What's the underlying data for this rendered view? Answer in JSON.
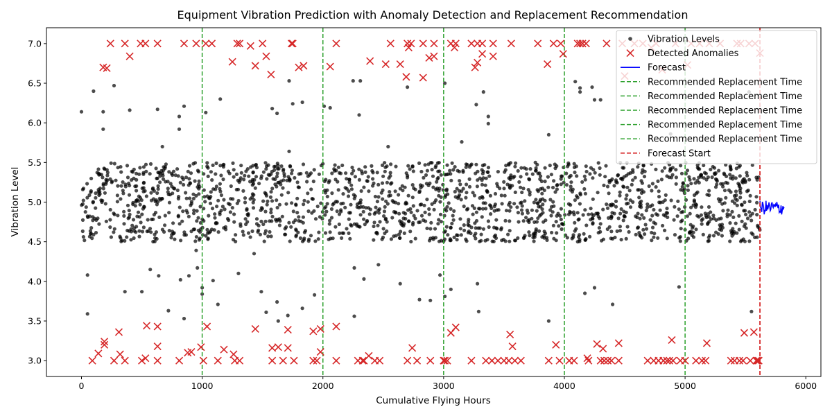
{
  "chart_data": {
    "type": "scatter",
    "title": "Equipment Vibration Prediction with Anomaly Detection and Replacement Recommendation",
    "xlabel": "Cumulative Flying Hours",
    "ylabel": "Vibration Level",
    "xlim": [
      -290,
      6125
    ],
    "ylim": [
      2.8,
      7.2
    ],
    "xticks": [
      0,
      1000,
      2000,
      3000,
      4000,
      5000,
      6000
    ],
    "yticks": [
      3.0,
      3.5,
      4.0,
      4.5,
      5.0,
      5.5,
      6.0,
      6.5,
      7.0
    ],
    "grid": false,
    "legend_position": "top-right",
    "colors": {
      "vibration": "#000000",
      "anomaly": "#d62728",
      "forecast": "#0000ff",
      "replacement": "#2ca02c",
      "forecast_start": "#d62728"
    },
    "vibration_series": {
      "name": "Vibration Levels",
      "n_points": 1800,
      "x_range": [
        0,
        5620
      ],
      "normal_band": [
        4.5,
        5.5
      ],
      "note_outliers": [
        [
          0,
          6.14
        ],
        [
          50,
          4.08
        ],
        [
          50,
          3.59
        ],
        [
          100,
          6.4
        ],
        [
          180,
          6.14
        ],
        [
          180,
          5.92
        ],
        [
          270,
          6.47
        ],
        [
          360,
          3.87
        ],
        [
          400,
          6.16
        ],
        [
          500,
          3.87
        ],
        [
          570,
          4.15
        ],
        [
          630,
          6.17
        ],
        [
          640,
          4.07
        ],
        [
          670,
          5.7
        ],
        [
          720,
          3.63
        ],
        [
          810,
          6.08
        ],
        [
          810,
          5.92
        ],
        [
          820,
          4.02
        ],
        [
          850,
          3.53
        ],
        [
          850,
          6.21
        ],
        [
          890,
          4.07
        ],
        [
          950,
          4.39
        ],
        [
          960,
          4.17
        ],
        [
          1000,
          3.92
        ],
        [
          1000,
          3.84
        ],
        [
          1030,
          6.13
        ],
        [
          1090,
          4.01
        ],
        [
          1130,
          3.71
        ],
        [
          1150,
          6.3
        ],
        [
          1300,
          4.1
        ],
        [
          1430,
          4.35
        ],
        [
          1490,
          3.87
        ],
        [
          1530,
          3.61
        ],
        [
          1580,
          6.18
        ],
        [
          1620,
          6.12
        ],
        [
          1620,
          3.74
        ],
        [
          1630,
          3.5
        ],
        [
          1710,
          3.57
        ],
        [
          1720,
          5.64
        ],
        [
          1720,
          6.53
        ],
        [
          1750,
          6.24
        ],
        [
          1830,
          6.26
        ],
        [
          1830,
          3.66
        ],
        [
          1930,
          3.83
        ],
        [
          2010,
          6.21
        ],
        [
          2060,
          6.19
        ],
        [
          2250,
          6.53
        ],
        [
          2260,
          3.56
        ],
        [
          2260,
          4.17
        ],
        [
          2300,
          6.1
        ],
        [
          2310,
          6.53
        ],
        [
          2340,
          4.03
        ],
        [
          2460,
          4.21
        ],
        [
          2540,
          5.7
        ],
        [
          2640,
          3.97
        ],
        [
          2700,
          6.45
        ],
        [
          2800,
          3.77
        ],
        [
          2890,
          3.76
        ],
        [
          2970,
          4.08
        ],
        [
          3010,
          6.5
        ],
        [
          3010,
          3.81
        ],
        [
          3060,
          3.9
        ],
        [
          3150,
          5.76
        ],
        [
          3270,
          6.23
        ],
        [
          3280,
          3.97
        ],
        [
          3290,
          3.62
        ],
        [
          3330,
          6.39
        ],
        [
          3370,
          6.08
        ],
        [
          3370,
          5.99
        ],
        [
          3870,
          5.85
        ],
        [
          3870,
          3.5
        ],
        [
          4090,
          6.52
        ],
        [
          4130,
          6.44
        ],
        [
          4130,
          6.39
        ],
        [
          4170,
          3.85
        ],
        [
          4230,
          6.45
        ],
        [
          4250,
          6.29
        ],
        [
          4250,
          3.92
        ],
        [
          4300,
          6.29
        ],
        [
          4400,
          3.71
        ],
        [
          4880,
          5.86
        ],
        [
          4950,
          3.93
        ],
        [
          5530,
          6.39
        ],
        [
          5550,
          3.62
        ]
      ]
    },
    "anomalies": {
      "name": "Detected Anomalies",
      "points": [
        [
          90,
          3.0
        ],
        [
          140,
          3.09
        ],
        [
          180,
          6.7
        ],
        [
          190,
          3.24
        ],
        [
          190,
          3.2
        ],
        [
          210,
          6.69
        ],
        [
          240,
          7.0
        ],
        [
          270,
          3.0
        ],
        [
          310,
          3.36
        ],
        [
          320,
          3.08
        ],
        [
          360,
          7.0
        ],
        [
          360,
          3.0
        ],
        [
          400,
          6.84
        ],
        [
          490,
          7.0
        ],
        [
          500,
          3.0
        ],
        [
          530,
          7.0
        ],
        [
          530,
          3.03
        ],
        [
          540,
          3.44
        ],
        [
          630,
          7.0
        ],
        [
          630,
          3.43
        ],
        [
          630,
          3.18
        ],
        [
          630,
          3.0
        ],
        [
          810,
          3.0
        ],
        [
          850,
          7.0
        ],
        [
          880,
          3.1
        ],
        [
          910,
          3.11
        ],
        [
          950,
          7.0
        ],
        [
          990,
          3.17
        ],
        [
          1010,
          3.0
        ],
        [
          1030,
          7.0
        ],
        [
          1040,
          3.43
        ],
        [
          1080,
          7.0
        ],
        [
          1130,
          3.0
        ],
        [
          1180,
          3.14
        ],
        [
          1250,
          6.77
        ],
        [
          1260,
          3.08
        ],
        [
          1270,
          3.0
        ],
        [
          1290,
          7.0
        ],
        [
          1310,
          7.0
        ],
        [
          1310,
          3.0
        ],
        [
          1400,
          6.97
        ],
        [
          1440,
          6.72
        ],
        [
          1440,
          3.4
        ],
        [
          1500,
          7.0
        ],
        [
          1530,
          6.84
        ],
        [
          1570,
          6.61
        ],
        [
          1580,
          3.16
        ],
        [
          1580,
          3.0
        ],
        [
          1630,
          3.17
        ],
        [
          1670,
          3.0
        ],
        [
          1710,
          3.39
        ],
        [
          1710,
          3.16
        ],
        [
          1740,
          7.0
        ],
        [
          1750,
          7.0
        ],
        [
          1760,
          3.0
        ],
        [
          1800,
          6.7
        ],
        [
          1840,
          6.72
        ],
        [
          1920,
          3.37
        ],
        [
          1920,
          3.0
        ],
        [
          1950,
          3.0
        ],
        [
          1980,
          3.4
        ],
        [
          1980,
          3.11
        ],
        [
          2060,
          6.71
        ],
        [
          2110,
          7.0
        ],
        [
          2110,
          3.43
        ],
        [
          2110,
          3.0
        ],
        [
          2290,
          3.0
        ],
        [
          2330,
          3.0
        ],
        [
          2340,
          3.0
        ],
        [
          2380,
          3.06
        ],
        [
          2390,
          6.78
        ],
        [
          2430,
          3.0
        ],
        [
          2470,
          3.0
        ],
        [
          2520,
          6.74
        ],
        [
          2560,
          7.0
        ],
        [
          2640,
          6.74
        ],
        [
          2690,
          6.58
        ],
        [
          2700,
          7.0
        ],
        [
          2700,
          3.0
        ],
        [
          2710,
          6.95
        ],
        [
          2730,
          7.0
        ],
        [
          2740,
          3.16
        ],
        [
          2780,
          3.0
        ],
        [
          2830,
          7.0
        ],
        [
          2830,
          6.57
        ],
        [
          2880,
          6.82
        ],
        [
          2890,
          3.0
        ],
        [
          2920,
          7.0
        ],
        [
          2920,
          6.84
        ],
        [
          3000,
          3.0
        ],
        [
          3010,
          3.0
        ],
        [
          3030,
          3.0
        ],
        [
          3060,
          7.0
        ],
        [
          3060,
          3.35
        ],
        [
          3090,
          6.95
        ],
        [
          3100,
          3.42
        ],
        [
          3100,
          7.0
        ],
        [
          3230,
          7.0
        ],
        [
          3230,
          3.0
        ],
        [
          3260,
          6.7
        ],
        [
          3280,
          6.76
        ],
        [
          3280,
          7.0
        ],
        [
          3320,
          7.0
        ],
        [
          3320,
          6.87
        ],
        [
          3350,
          3.0
        ],
        [
          3400,
          3.0
        ],
        [
          3410,
          7.0
        ],
        [
          3410,
          6.84
        ],
        [
          3450,
          3.0
        ],
        [
          3500,
          3.0
        ],
        [
          3540,
          3.0
        ],
        [
          3550,
          3.33
        ],
        [
          3560,
          7.0
        ],
        [
          3570,
          3.18
        ],
        [
          3590,
          3.0
        ],
        [
          3640,
          3.0
        ],
        [
          3780,
          7.0
        ],
        [
          3860,
          6.74
        ],
        [
          3870,
          3.0
        ],
        [
          3910,
          7.0
        ],
        [
          3930,
          3.2
        ],
        [
          3960,
          3.0
        ],
        [
          3970,
          7.0
        ],
        [
          3990,
          6.87
        ],
        [
          4040,
          3.0
        ],
        [
          4080,
          3.0
        ],
        [
          4110,
          7.0
        ],
        [
          4130,
          7.0
        ],
        [
          4150,
          7.0
        ],
        [
          4180,
          7.0
        ],
        [
          4190,
          3.03
        ],
        [
          4200,
          3.0
        ],
        [
          4270,
          3.21
        ],
        [
          4300,
          3.0
        ],
        [
          4320,
          3.15
        ],
        [
          4330,
          3.0
        ],
        [
          4350,
          7.0
        ],
        [
          4360,
          3.0
        ],
        [
          4390,
          3.0
        ],
        [
          4450,
          3.22
        ],
        [
          4450,
          3.0
        ],
        [
          4480,
          7.0
        ],
        [
          4500,
          6.59
        ],
        [
          4580,
          7.0
        ],
        [
          4650,
          7.0
        ],
        [
          4690,
          3.0
        ],
        [
          4720,
          6.95
        ],
        [
          4740,
          3.0
        ],
        [
          4760,
          7.0
        ],
        [
          4780,
          3.0
        ],
        [
          4810,
          6.67
        ],
        [
          4820,
          3.0
        ],
        [
          4850,
          3.0
        ],
        [
          4870,
          3.0
        ],
        [
          4890,
          3.26
        ],
        [
          4900,
          3.0
        ],
        [
          4920,
          7.0
        ],
        [
          4960,
          3.0
        ],
        [
          5000,
          3.0
        ],
        [
          5020,
          6.73
        ],
        [
          5050,
          7.0
        ],
        [
          5090,
          3.0
        ],
        [
          5120,
          7.0
        ],
        [
          5140,
          3.0
        ],
        [
          5170,
          3.0
        ],
        [
          5180,
          3.22
        ],
        [
          5200,
          7.0
        ],
        [
          5290,
          7.0
        ],
        [
          5380,
          3.0
        ],
        [
          5410,
          3.0
        ],
        [
          5430,
          7.0
        ],
        [
          5450,
          3.0
        ],
        [
          5460,
          7.0
        ],
        [
          5480,
          3.0
        ],
        [
          5490,
          3.35
        ],
        [
          5530,
          7.0
        ],
        [
          5540,
          3.0
        ],
        [
          5570,
          3.36
        ],
        [
          5580,
          7.0
        ],
        [
          5590,
          3.0
        ],
        [
          5600,
          3.0
        ],
        [
          5610,
          3.0
        ],
        [
          5620,
          6.88
        ]
      ]
    },
    "forecast": {
      "name": "Forecast",
      "x_start": 5620,
      "x_end": 5820,
      "center": 4.93,
      "amplitude": 0.09
    },
    "replacement_lines": {
      "name": "Recommended Replacement Time",
      "x": [
        1000,
        2000,
        3000,
        4000,
        5000
      ]
    },
    "forecast_start": {
      "name": "Forecast Start",
      "x": 5620
    },
    "legend": [
      {
        "label": "Vibration Levels",
        "kind": "dot"
      },
      {
        "label": "Detected Anomalies",
        "kind": "cross"
      },
      {
        "label": "Forecast",
        "kind": "line"
      },
      {
        "label": "Recommended Replacement Time",
        "kind": "dash-green"
      },
      {
        "label": "Recommended Replacement Time",
        "kind": "dash-green"
      },
      {
        "label": "Recommended Replacement Time",
        "kind": "dash-green"
      },
      {
        "label": "Recommended Replacement Time",
        "kind": "dash-green"
      },
      {
        "label": "Recommended Replacement Time",
        "kind": "dash-green"
      },
      {
        "label": "Forecast Start",
        "kind": "dash-red"
      }
    ]
  }
}
